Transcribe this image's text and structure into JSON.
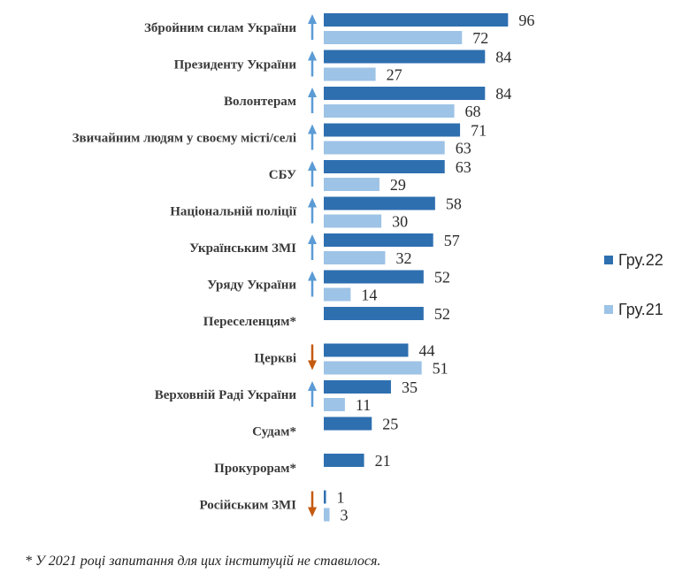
{
  "chart_data": {
    "type": "bar",
    "orientation": "horizontal",
    "categories": [
      "Збройним силам України",
      "Президенту України",
      "Волонтерам",
      "Звичайним людям у своєму місті/селі",
      "СБУ",
      "Національній поліції",
      "Українським ЗМІ",
      "Уряду України",
      "Переселенцям*",
      "Церкві",
      "Верховній Раді України",
      "Судам*",
      "Прокурорам*",
      "Російським ЗМІ"
    ],
    "series": [
      {
        "name": "Гру.22",
        "color": "#2e6fb0",
        "values": [
          96,
          84,
          84,
          71,
          63,
          58,
          57,
          52,
          52,
          44,
          35,
          25,
          21,
          1
        ]
      },
      {
        "name": "Гру.21",
        "color": "#9dc3e6",
        "values": [
          72,
          27,
          68,
          63,
          29,
          30,
          32,
          14,
          null,
          51,
          11,
          null,
          null,
          3
        ]
      }
    ],
    "trend": [
      "up",
      "up",
      "up",
      "up",
      "up",
      "up",
      "up",
      "up",
      null,
      "down",
      "up",
      null,
      null,
      "down"
    ],
    "trend_colors": {
      "up": "#5b9bd5",
      "down": "#c55a11"
    },
    "xlim": [
      0,
      100
    ],
    "grid": false,
    "legend_position": "right"
  },
  "footnote": "* У 2021 році запитання для цих інституцій не ставилося."
}
